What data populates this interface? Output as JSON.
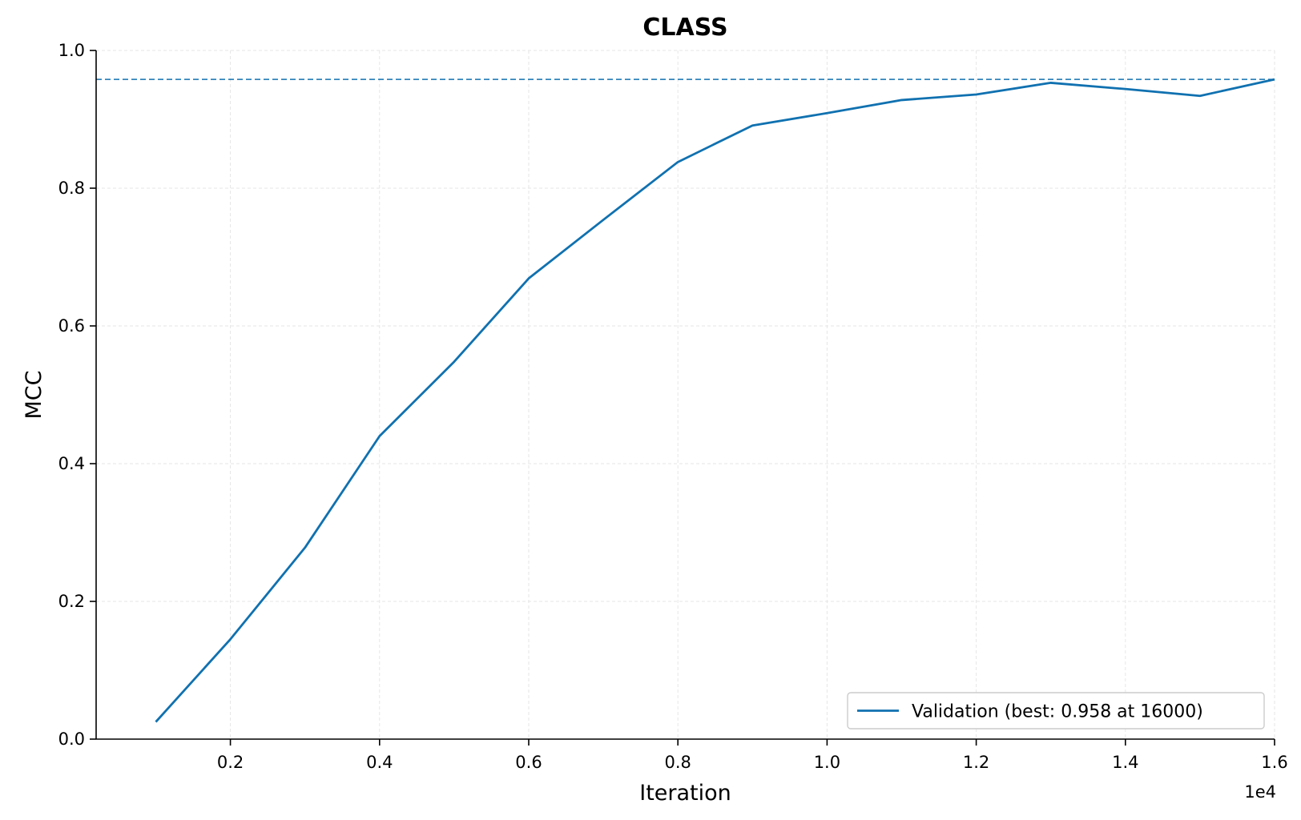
{
  "chart_data": {
    "type": "line",
    "title": "CLASS",
    "xlabel": "Iteration",
    "ylabel": "MCC",
    "x_offset_label": "1e4",
    "xlim": [
      200,
      16000
    ],
    "ylim": [
      0.0,
      1.0
    ],
    "x_ticks": [
      2000,
      4000,
      6000,
      8000,
      10000,
      12000,
      14000,
      16000
    ],
    "x_tick_labels": [
      "0.2",
      "0.4",
      "0.6",
      "0.8",
      "1.0",
      "1.2",
      "1.4",
      "1.6"
    ],
    "y_ticks": [
      0.0,
      0.2,
      0.4,
      0.6,
      0.8,
      1.0
    ],
    "y_tick_labels": [
      "0.0",
      "0.2",
      "0.4",
      "0.6",
      "0.8",
      "1.0"
    ],
    "grid": true,
    "legend_position": "bottom-right",
    "series": [
      {
        "name": "Validation (best: 0.958 at 16000)",
        "color": "#1071b0",
        "x": [
          1000,
          2000,
          3000,
          4000,
          5000,
          6000,
          7000,
          8000,
          9000,
          10000,
          11000,
          12000,
          13000,
          14000,
          15000,
          16000
        ],
        "y": [
          0.025,
          0.145,
          0.278,
          0.44,
          0.548,
          0.669,
          0.754,
          0.838,
          0.891,
          0.909,
          0.928,
          0.936,
          0.953,
          0.944,
          0.934,
          0.958
        ]
      }
    ],
    "reference_lines": [
      {
        "type": "horizontal",
        "y": 0.958,
        "color": "#1071b0",
        "style": "dashed"
      }
    ]
  }
}
